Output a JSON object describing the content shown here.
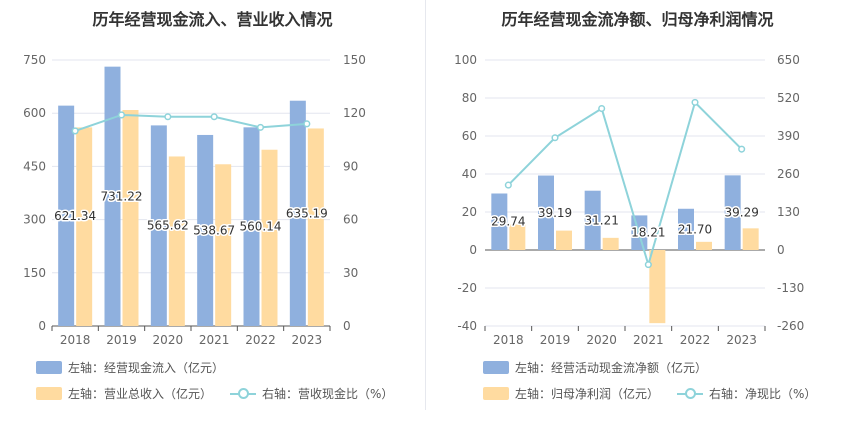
{
  "charts": [
    {
      "title": "历年经营现金流入、营业收入情况",
      "legend": {
        "bar1": "左轴：经营现金流入（亿元）",
        "bar2": "左轴：营业总收入（亿元）",
        "line": "右轴：营收现金比（%）"
      }
    },
    {
      "title": "历年经营现金流净额、归母净利润情况",
      "legend": {
        "bar1": "左轴：经营活动现金流净额（亿元）",
        "bar2": "左轴：归母净利润（亿元）",
        "line": "右轴：净现比（%）"
      }
    }
  ],
  "colors": {
    "bar1": "#8fb0de",
    "bar2": "#ffdba0",
    "line": "#8ed3da"
  },
  "chart_data": [
    {
      "type": "bar",
      "categories": [
        "2018",
        "2019",
        "2020",
        "2021",
        "2022",
        "2023"
      ],
      "series": [
        {
          "name": "左轴：经营现金流入（亿元）",
          "axis": "left",
          "values": [
            621.34,
            731.22,
            565.62,
            538.67,
            560.14,
            635.19
          ],
          "data_labels": [
            "621.34",
            "731.22",
            "565.62",
            "538.67",
            "560.14",
            "635.19"
          ]
        },
        {
          "name": "左轴：营业总收入（亿元）",
          "axis": "left",
          "values": [
            560,
            609,
            478,
            456,
            497,
            557
          ]
        },
        {
          "name": "右轴：营收现金比（%）",
          "axis": "right",
          "type": "line",
          "values": [
            110,
            119,
            118,
            118,
            112,
            114
          ]
        }
      ],
      "left_axis": {
        "ylim": [
          0,
          750
        ],
        "ticks": [
          "0",
          "150",
          "300",
          "450",
          "600",
          "750"
        ]
      },
      "right_axis": {
        "ylim": [
          0,
          150
        ],
        "ticks": [
          "0",
          "30",
          "60",
          "90",
          "120",
          "150"
        ]
      }
    },
    {
      "type": "bar",
      "categories": [
        "2018",
        "2019",
        "2020",
        "2021",
        "2022",
        "2023"
      ],
      "series": [
        {
          "name": "左轴：经营活动现金流净额（亿元）",
          "axis": "left",
          "values": [
            29.74,
            39.19,
            31.21,
            18.21,
            21.7,
            39.29
          ],
          "data_labels": [
            "29.74",
            "39.19",
            "31.21",
            "18.21",
            "21.70",
            "39.29"
          ]
        },
        {
          "name": "左轴：归母净利润（亿元）",
          "axis": "left",
          "values": [
            13.4,
            10.2,
            6.4,
            -38.5,
            4.3,
            11.4
          ]
        },
        {
          "name": "右轴：净现比（%）",
          "axis": "right",
          "type": "line",
          "values": [
            222,
            384,
            484,
            -50,
            505,
            345
          ]
        }
      ],
      "left_axis": {
        "ylim": [
          -40,
          100
        ],
        "ticks": [
          "-40",
          "-20",
          "0",
          "20",
          "40",
          "60",
          "80",
          "100"
        ]
      },
      "right_axis": {
        "ylim": [
          -260,
          650
        ],
        "ticks": [
          "-260",
          "-130",
          "0",
          "130",
          "260",
          "390",
          "520",
          "650"
        ]
      }
    }
  ]
}
